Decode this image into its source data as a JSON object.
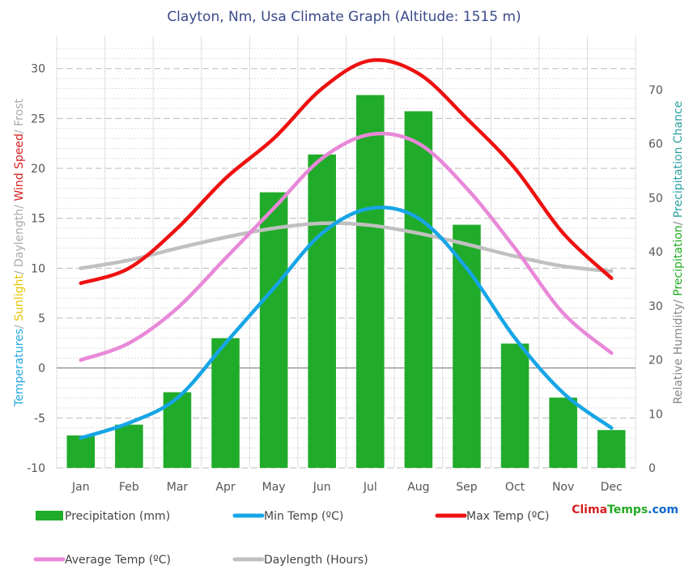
{
  "chart_data": {
    "type": "bar+line",
    "title": "Clayton, Nm, Usa Climate Graph (Altitude: 1515 m)",
    "categories": [
      "Jan",
      "Feb",
      "Mar",
      "Apr",
      "May",
      "Jun",
      "Jul",
      "Aug",
      "Sep",
      "Oct",
      "Nov",
      "Dec"
    ],
    "left_axis": {
      "label_parts": [
        {
          "text": "Temperatures",
          "color": "#23a7e0"
        },
        {
          "text": "/ ",
          "color": "#aaaaaa"
        },
        {
          "text": "Sunlight",
          "color": "#e8c400"
        },
        {
          "text": "/ Daylength",
          "color": "#aaaaaa"
        },
        {
          "text": "/ ",
          "color": "#aaaaaa"
        },
        {
          "text": "Wind Speed",
          "color": "#d62020"
        },
        {
          "text": "/ Frost",
          "color": "#aaaaaa"
        }
      ],
      "ylim": [
        -10,
        33.3
      ],
      "ticks": [
        -10,
        -5,
        0,
        5,
        10,
        15,
        20,
        25,
        30
      ]
    },
    "right_axis": {
      "label_parts": [
        {
          "text": "Relative Humidity",
          "color": "#888888"
        },
        {
          "text": "/ ",
          "color": "#888888"
        },
        {
          "text": "Precipitation",
          "color": "#22aa22"
        },
        {
          "text": "/ ",
          "color": "#888888"
        },
        {
          "text": "Precipitation Chance",
          "color": "#2aa0a0"
        }
      ],
      "ylim": [
        0,
        80
      ],
      "ticks": [
        0,
        10,
        20,
        30,
        40,
        50,
        60,
        70
      ]
    },
    "series": [
      {
        "name": "Precipitation (mm)",
        "kind": "bar",
        "axis": "right",
        "color": "#21ab2a",
        "values": [
          6,
          8,
          14,
          24,
          51,
          58,
          69,
          66,
          45,
          23,
          13,
          7
        ]
      },
      {
        "name": "Min Temp (ºC)",
        "kind": "line",
        "axis": "left",
        "color": "#16a5e6",
        "values": [
          -7,
          -5.5,
          -3,
          2.5,
          8,
          13.5,
          16,
          15,
          10,
          3,
          -2.5,
          -6
        ]
      },
      {
        "name": "Max Temp (ºC)",
        "kind": "line",
        "axis": "left",
        "color": "#ee1111",
        "values": [
          8.5,
          10,
          14,
          19,
          23,
          28,
          30.8,
          29.5,
          25,
          20,
          13.5,
          9
        ]
      },
      {
        "name": "Average Temp (ºC)",
        "kind": "line",
        "axis": "left",
        "color": "#e888d8",
        "values": [
          0.8,
          2.5,
          6,
          11,
          16,
          21,
          23.4,
          22.5,
          18,
          12,
          5.5,
          1.5
        ]
      },
      {
        "name": "Daylength (Hours)",
        "kind": "line",
        "axis": "left",
        "color": "#c0c0c0",
        "values": [
          10,
          10.8,
          12,
          13.1,
          14,
          14.5,
          14.3,
          13.5,
          12.4,
          11.2,
          10.2,
          9.7
        ]
      }
    ],
    "legend_placement": "bottom",
    "grid": true,
    "watermark": {
      "parts": [
        {
          "text": "Clima",
          "color": "#d42020"
        },
        {
          "text": "Temps",
          "color": "#22aa22"
        },
        {
          "text": ".com",
          "color": "#1166cc"
        }
      ]
    }
  }
}
